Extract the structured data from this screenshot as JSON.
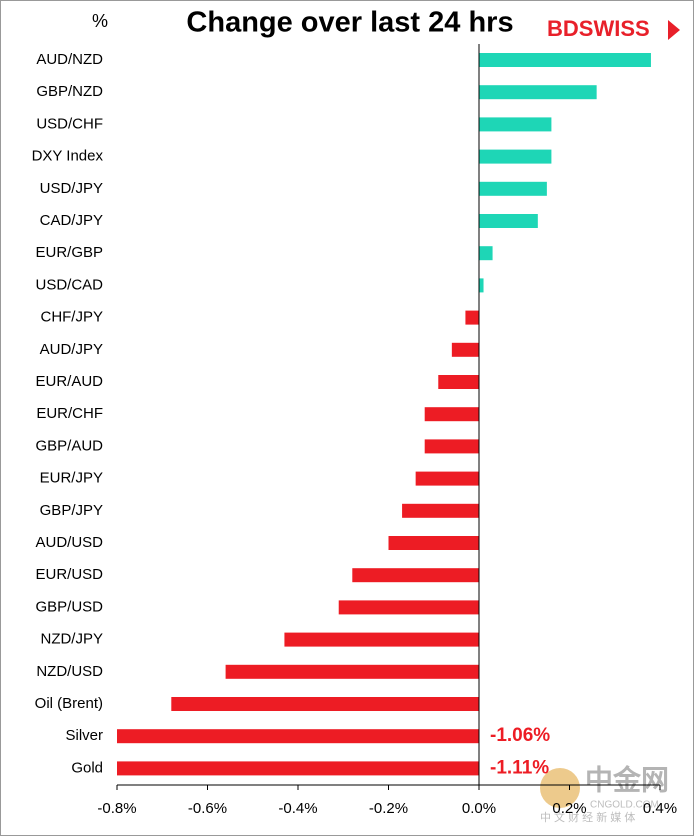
{
  "chart_data": {
    "type": "hbar",
    "title": "Change over last 24 hrs",
    "unit_label": "%",
    "logo": "BDSWISS",
    "watermark": "中金网",
    "watermark_url": "CNGOLD.COM",
    "watermark_tagline": "中 文 财 经 新 媒 体",
    "categories": [
      "AUD/NZD",
      "GBP/NZD",
      "USD/CHF",
      "DXY Index",
      "USD/JPY",
      "CAD/JPY",
      "EUR/GBP",
      "USD/CAD",
      "CHF/JPY",
      "AUD/JPY",
      "EUR/AUD",
      "EUR/CHF",
      "GBP/AUD",
      "EUR/JPY",
      "GBP/JPY",
      "AUD/USD",
      "EUR/USD",
      "GBP/USD",
      "NZD/JPY",
      "NZD/USD",
      "Oil (Brent)",
      "Silver",
      "Gold"
    ],
    "values": [
      0.38,
      0.26,
      0.16,
      0.16,
      0.15,
      0.13,
      0.03,
      0.01,
      -0.03,
      -0.06,
      -0.09,
      -0.12,
      -0.12,
      -0.14,
      -0.17,
      -0.2,
      -0.28,
      -0.31,
      -0.43,
      -0.56,
      -0.68,
      -1.06,
      -1.11
    ],
    "value_labels": [
      null,
      null,
      null,
      null,
      null,
      null,
      null,
      null,
      null,
      null,
      null,
      null,
      null,
      null,
      null,
      null,
      null,
      null,
      null,
      null,
      null,
      "-1.06%",
      "-1.11%"
    ],
    "positive_color": "#1ed6b6",
    "negative_color": "#ed1c24",
    "xlim": [
      -0.8,
      0.4
    ],
    "xticks": [
      {
        "value": -0.8,
        "label": "-0.8%"
      },
      {
        "value": -0.6,
        "label": "-0.6%"
      },
      {
        "value": -0.4,
        "label": "-0.4%"
      },
      {
        "value": -0.2,
        "label": "-0.2%"
      },
      {
        "value": 0,
        "label": "0.0%"
      },
      {
        "value": 0.2,
        "label": "0.2%"
      },
      {
        "value": 0.4,
        "label": "0.4%"
      }
    ],
    "grid": false
  }
}
